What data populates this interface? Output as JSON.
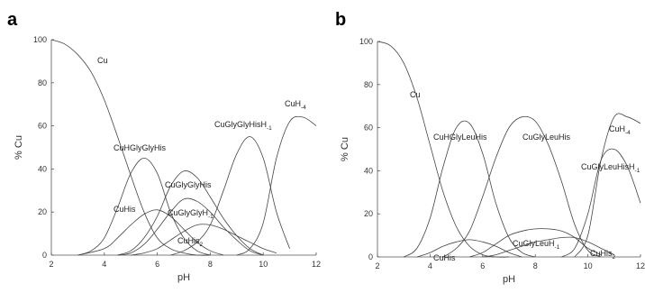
{
  "chart_data": [
    {
      "panel": "a",
      "type": "line",
      "xlabel": "pH",
      "ylabel": "% Cu",
      "xlim": [
        2,
        12
      ],
      "ylim": [
        0,
        100
      ],
      "xticks": [
        "2",
        "4",
        "6",
        "8",
        "10",
        "12"
      ],
      "yticks": [
        "0",
        "20",
        "40",
        "60",
        "80",
        "100"
      ],
      "series": [
        {
          "name": "Cu",
          "label": "Cu",
          "x": [
            2,
            2.5,
            3,
            3.5,
            4,
            4.5,
            5,
            5.5,
            6,
            6.5,
            7,
            7.5,
            8
          ],
          "y": [
            100,
            98,
            93,
            85,
            72,
            55,
            37,
            20,
            8,
            3,
            1,
            0,
            0
          ]
        },
        {
          "name": "CuHGlyGlyHis",
          "label": "CuHGlyGlyHis",
          "x": [
            3,
            3.5,
            4,
            4.5,
            5,
            5.5,
            6,
            6.5,
            7,
            7.5,
            8
          ],
          "y": [
            0,
            2,
            8,
            22,
            38,
            45,
            38,
            20,
            8,
            2,
            0
          ]
        },
        {
          "name": "CuHis",
          "label": "CuHis",
          "x": [
            3,
            4,
            4.5,
            5,
            5.5,
            6,
            6.5,
            7,
            7.5,
            8,
            8.5
          ],
          "y": [
            0,
            3,
            8,
            14,
            19,
            21,
            18,
            12,
            6,
            2,
            0
          ]
        },
        {
          "name": "CuGlyGlyHis",
          "label": "CuGlyGlyHis",
          "x": [
            4.5,
            5,
            5.5,
            6,
            6.5,
            7,
            7.5,
            8,
            8.5,
            9,
            9.5,
            10
          ],
          "y": [
            0,
            2,
            8,
            18,
            32,
            39,
            36,
            27,
            17,
            9,
            3,
            0
          ]
        },
        {
          "name": "CuGlyGlyH-1",
          "label": "CuGlyGlyH",
          "sub": "-1",
          "x": [
            4.5,
            5,
            5.5,
            6,
            6.5,
            7,
            7.5,
            8,
            8.5,
            9,
            9.5,
            10
          ],
          "y": [
            0,
            1,
            5,
            12,
            20,
            26,
            25,
            20,
            13,
            7,
            2,
            0
          ]
        },
        {
          "name": "CuHis2",
          "label": "CuHis",
          "sub": "2",
          "x": [
            5,
            5.5,
            6,
            6.5,
            7,
            7.5,
            8,
            8.5,
            9,
            9.5,
            10,
            10.5
          ],
          "y": [
            0,
            1,
            3,
            7,
            11,
            14,
            14,
            12,
            9,
            6,
            3,
            1
          ]
        },
        {
          "name": "CuGlyGlyHisH-1",
          "label": "CuGlyGlyHisH",
          "sub": "-1",
          "x": [
            6.5,
            7,
            7.5,
            8,
            8.5,
            9,
            9.5,
            10,
            10.5,
            11
          ],
          "y": [
            0,
            2,
            6,
            14,
            30,
            47,
            55,
            45,
            20,
            3
          ]
        },
        {
          "name": "CuH-4",
          "label": "CuH",
          "sub": "-4",
          "x": [
            9,
            9.5,
            10,
            10.5,
            11,
            11.5,
            12
          ],
          "y": [
            0,
            3,
            15,
            45,
            62,
            64,
            60
          ]
        }
      ],
      "species_labels": [
        "Cu",
        "CuHGlyGlyHis",
        "CuGlyGlyHis",
        "CuGlyGlyH-1",
        "CuHis",
        "CuHis2",
        "CuGlyGlyHisH-1",
        "CuH-4"
      ],
      "grid": false,
      "legend": "none"
    },
    {
      "panel": "b",
      "type": "line",
      "xlabel": "pH",
      "ylabel": "% Cu",
      "xlim": [
        2,
        12
      ],
      "ylim": [
        0,
        100
      ],
      "xticks": [
        "2",
        "4",
        "6",
        "8",
        "10",
        "12"
      ],
      "yticks": [
        "0",
        "20",
        "40",
        "60",
        "80",
        "100"
      ],
      "series": [
        {
          "name": "Cu",
          "label": "Cu",
          "x": [
            2,
            2.5,
            3,
            3.5,
            4,
            4.5,
            5,
            5.5,
            6,
            6.5,
            7
          ],
          "y": [
            100,
            98,
            90,
            74,
            52,
            30,
            14,
            5,
            1,
            0,
            0
          ]
        },
        {
          "name": "CuHGlyLeuHis",
          "label": "CuHGlyLeuHis",
          "x": [
            3,
            3.5,
            4,
            4.5,
            5,
            5.5,
            6,
            6.5,
            7,
            7.5,
            8
          ],
          "y": [
            0,
            4,
            18,
            42,
            60,
            62,
            48,
            25,
            9,
            2,
            0
          ]
        },
        {
          "name": "CuGlyLeuHis",
          "label": "CuGlyLeuHis",
          "x": [
            4.5,
            5,
            5.5,
            6,
            6.5,
            7,
            7.5,
            8,
            8.5,
            9,
            9.5,
            10,
            10.5
          ],
          "y": [
            0,
            4,
            12,
            28,
            46,
            60,
            65,
            63,
            52,
            35,
            15,
            3,
            0
          ]
        },
        {
          "name": "CuHis",
          "label": "CuHis",
          "x": [
            3.5,
            4,
            4.5,
            5,
            5.5,
            6,
            6.5,
            7,
            7.5
          ],
          "y": [
            0,
            2,
            5,
            7,
            8,
            7,
            5,
            2,
            0
          ]
        },
        {
          "name": "CuGlyLeuH-1",
          "label": "CuGlyLeuH",
          "sub": "-1",
          "x": [
            5.5,
            6,
            6.5,
            7,
            7.5,
            8,
            8.5,
            9,
            9.5,
            10,
            10.5
          ],
          "y": [
            0,
            2,
            6,
            10,
            12,
            13,
            13,
            12,
            9,
            4,
            1
          ]
        },
        {
          "name": "CuHis2",
          "label": "CuHis",
          "sub": "2",
          "x": [
            6,
            6.5,
            7,
            7.5,
            8,
            8.5,
            9,
            9.5,
            10,
            10.5,
            11
          ],
          "y": [
            0,
            1,
            3,
            5,
            7,
            8,
            9,
            9,
            7,
            4,
            1
          ]
        },
        {
          "name": "CuGlyLeuHisH-1",
          "label": "CuGlyLeuHisH",
          "sub": "-1",
          "x": [
            9,
            9.5,
            10,
            10.5,
            11,
            11.5,
            12
          ],
          "y": [
            0,
            4,
            20,
            45,
            50,
            42,
            25
          ]
        },
        {
          "name": "CuH-4",
          "label": "CuH",
          "sub": "-4",
          "x": [
            9.5,
            10,
            10.5,
            11,
            11.5,
            12
          ],
          "y": [
            0,
            10,
            45,
            65,
            65,
            62
          ]
        }
      ],
      "species_labels": [
        "Cu",
        "CuHGlyLeuHis",
        "CuGlyLeuHis",
        "CuHis",
        "CuGlyLeuH-1",
        "CuHis2",
        "CuGlyLeuHisH-1",
        "CuH-4"
      ],
      "grid": false,
      "legend": "none"
    }
  ]
}
